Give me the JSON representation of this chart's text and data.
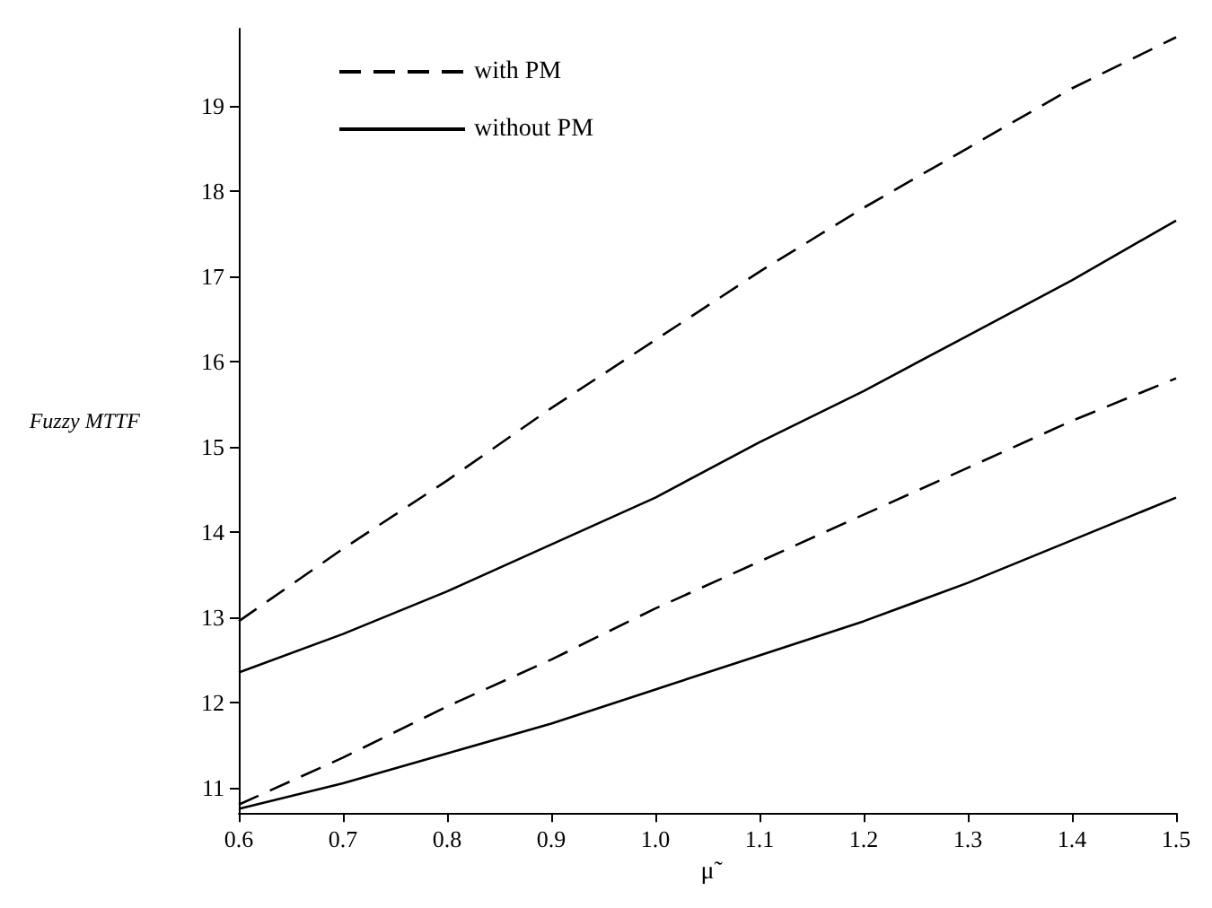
{
  "chart_data": {
    "type": "line",
    "xlabel": "μ̃",
    "ylabel": "Fuzzy MTTF",
    "x": [
      0.6,
      0.7,
      0.8,
      0.9,
      1.0,
      1.1,
      1.2,
      1.3,
      1.4,
      1.5
    ],
    "series": [
      {
        "name": "with PM",
        "color": "#000000",
        "line_style": "dashed",
        "values": [
          12.95,
          13.8,
          14.6,
          15.45,
          16.25,
          17.05,
          17.8,
          18.5,
          19.2,
          19.8
        ]
      },
      {
        "name": "without PM",
        "color": "#000000",
        "line_style": "solid",
        "values": [
          12.35,
          12.8,
          13.3,
          13.85,
          14.4,
          15.05,
          15.65,
          16.3,
          16.95,
          17.65
        ]
      },
      {
        "color": "#000000",
        "line_style": "dashed",
        "values": [
          10.8,
          11.35,
          11.95,
          12.5,
          13.1,
          13.65,
          14.2,
          14.75,
          15.3,
          15.8
        ]
      },
      {
        "color": "#000000",
        "line_style": "solid",
        "values": [
          10.75,
          11.05,
          11.4,
          11.75,
          12.15,
          12.55,
          12.95,
          13.4,
          13.9,
          14.4
        ]
      }
    ],
    "xlim": [
      0.6,
      1.5
    ],
    "xticks": [
      0.6,
      0.7,
      0.8,
      0.9,
      {
        "value": 1,
        "label": "1.0"
      },
      1.1,
      1.2,
      1.3,
      1.4,
      1.5
    ],
    "ylim": [
      10.7,
      19.9
    ],
    "yticks": [
      11,
      12,
      13,
      14,
      15,
      16,
      17,
      18,
      19
    ],
    "grid": false,
    "legend": "top left",
    "marker": "none"
  }
}
